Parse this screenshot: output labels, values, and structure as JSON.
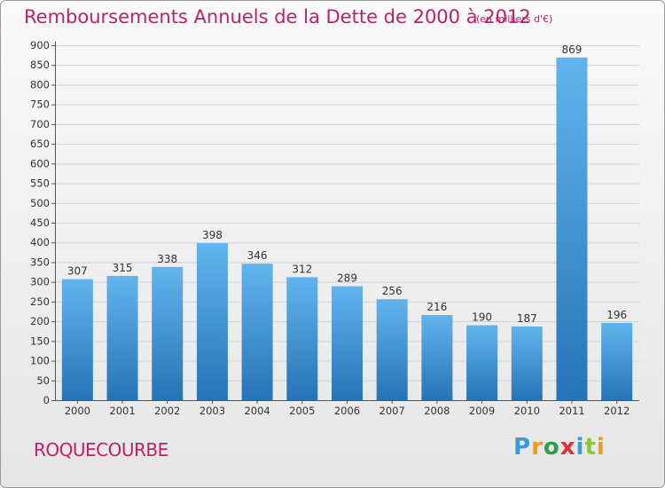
{
  "header": {
    "title": "Remboursements Annuels de la Dette de 2000 à 2012",
    "unit_note": "(en milliers d'€)"
  },
  "footer": {
    "commune": "ROQUECOURBE",
    "logo_text": "Proxiti",
    "logo_letters": [
      {
        "ch": "P",
        "color": "#3a9ad9"
      },
      {
        "ch": "r",
        "color": "#f39c12"
      },
      {
        "ch": "o",
        "color": "#2f9e44"
      },
      {
        "ch": "x",
        "color": "#e03131"
      },
      {
        "ch": "i",
        "color": "#3a9ad9"
      },
      {
        "ch": "t",
        "color": "#8cc63f"
      },
      {
        "ch": "i",
        "color": "#f39c12"
      }
    ]
  },
  "chart_data": {
    "type": "bar",
    "title": "Remboursements Annuels de la Dette de 2000 à 2012",
    "subtitle": "(en milliers d'€)",
    "xlabel": "",
    "ylabel": "",
    "categories": [
      "2000",
      "2001",
      "2002",
      "2003",
      "2004",
      "2005",
      "2006",
      "2007",
      "2008",
      "2009",
      "2010",
      "2011",
      "2012"
    ],
    "values": [
      307,
      315,
      338,
      398,
      346,
      312,
      289,
      256,
      216,
      190,
      187,
      869,
      196
    ],
    "ylim": [
      0,
      900
    ],
    "yticks": [
      0,
      50,
      100,
      150,
      200,
      250,
      300,
      350,
      400,
      450,
      500,
      550,
      600,
      650,
      700,
      750,
      800,
      850,
      900
    ],
    "grid": true,
    "bar_color": "#4ea3e2"
  }
}
